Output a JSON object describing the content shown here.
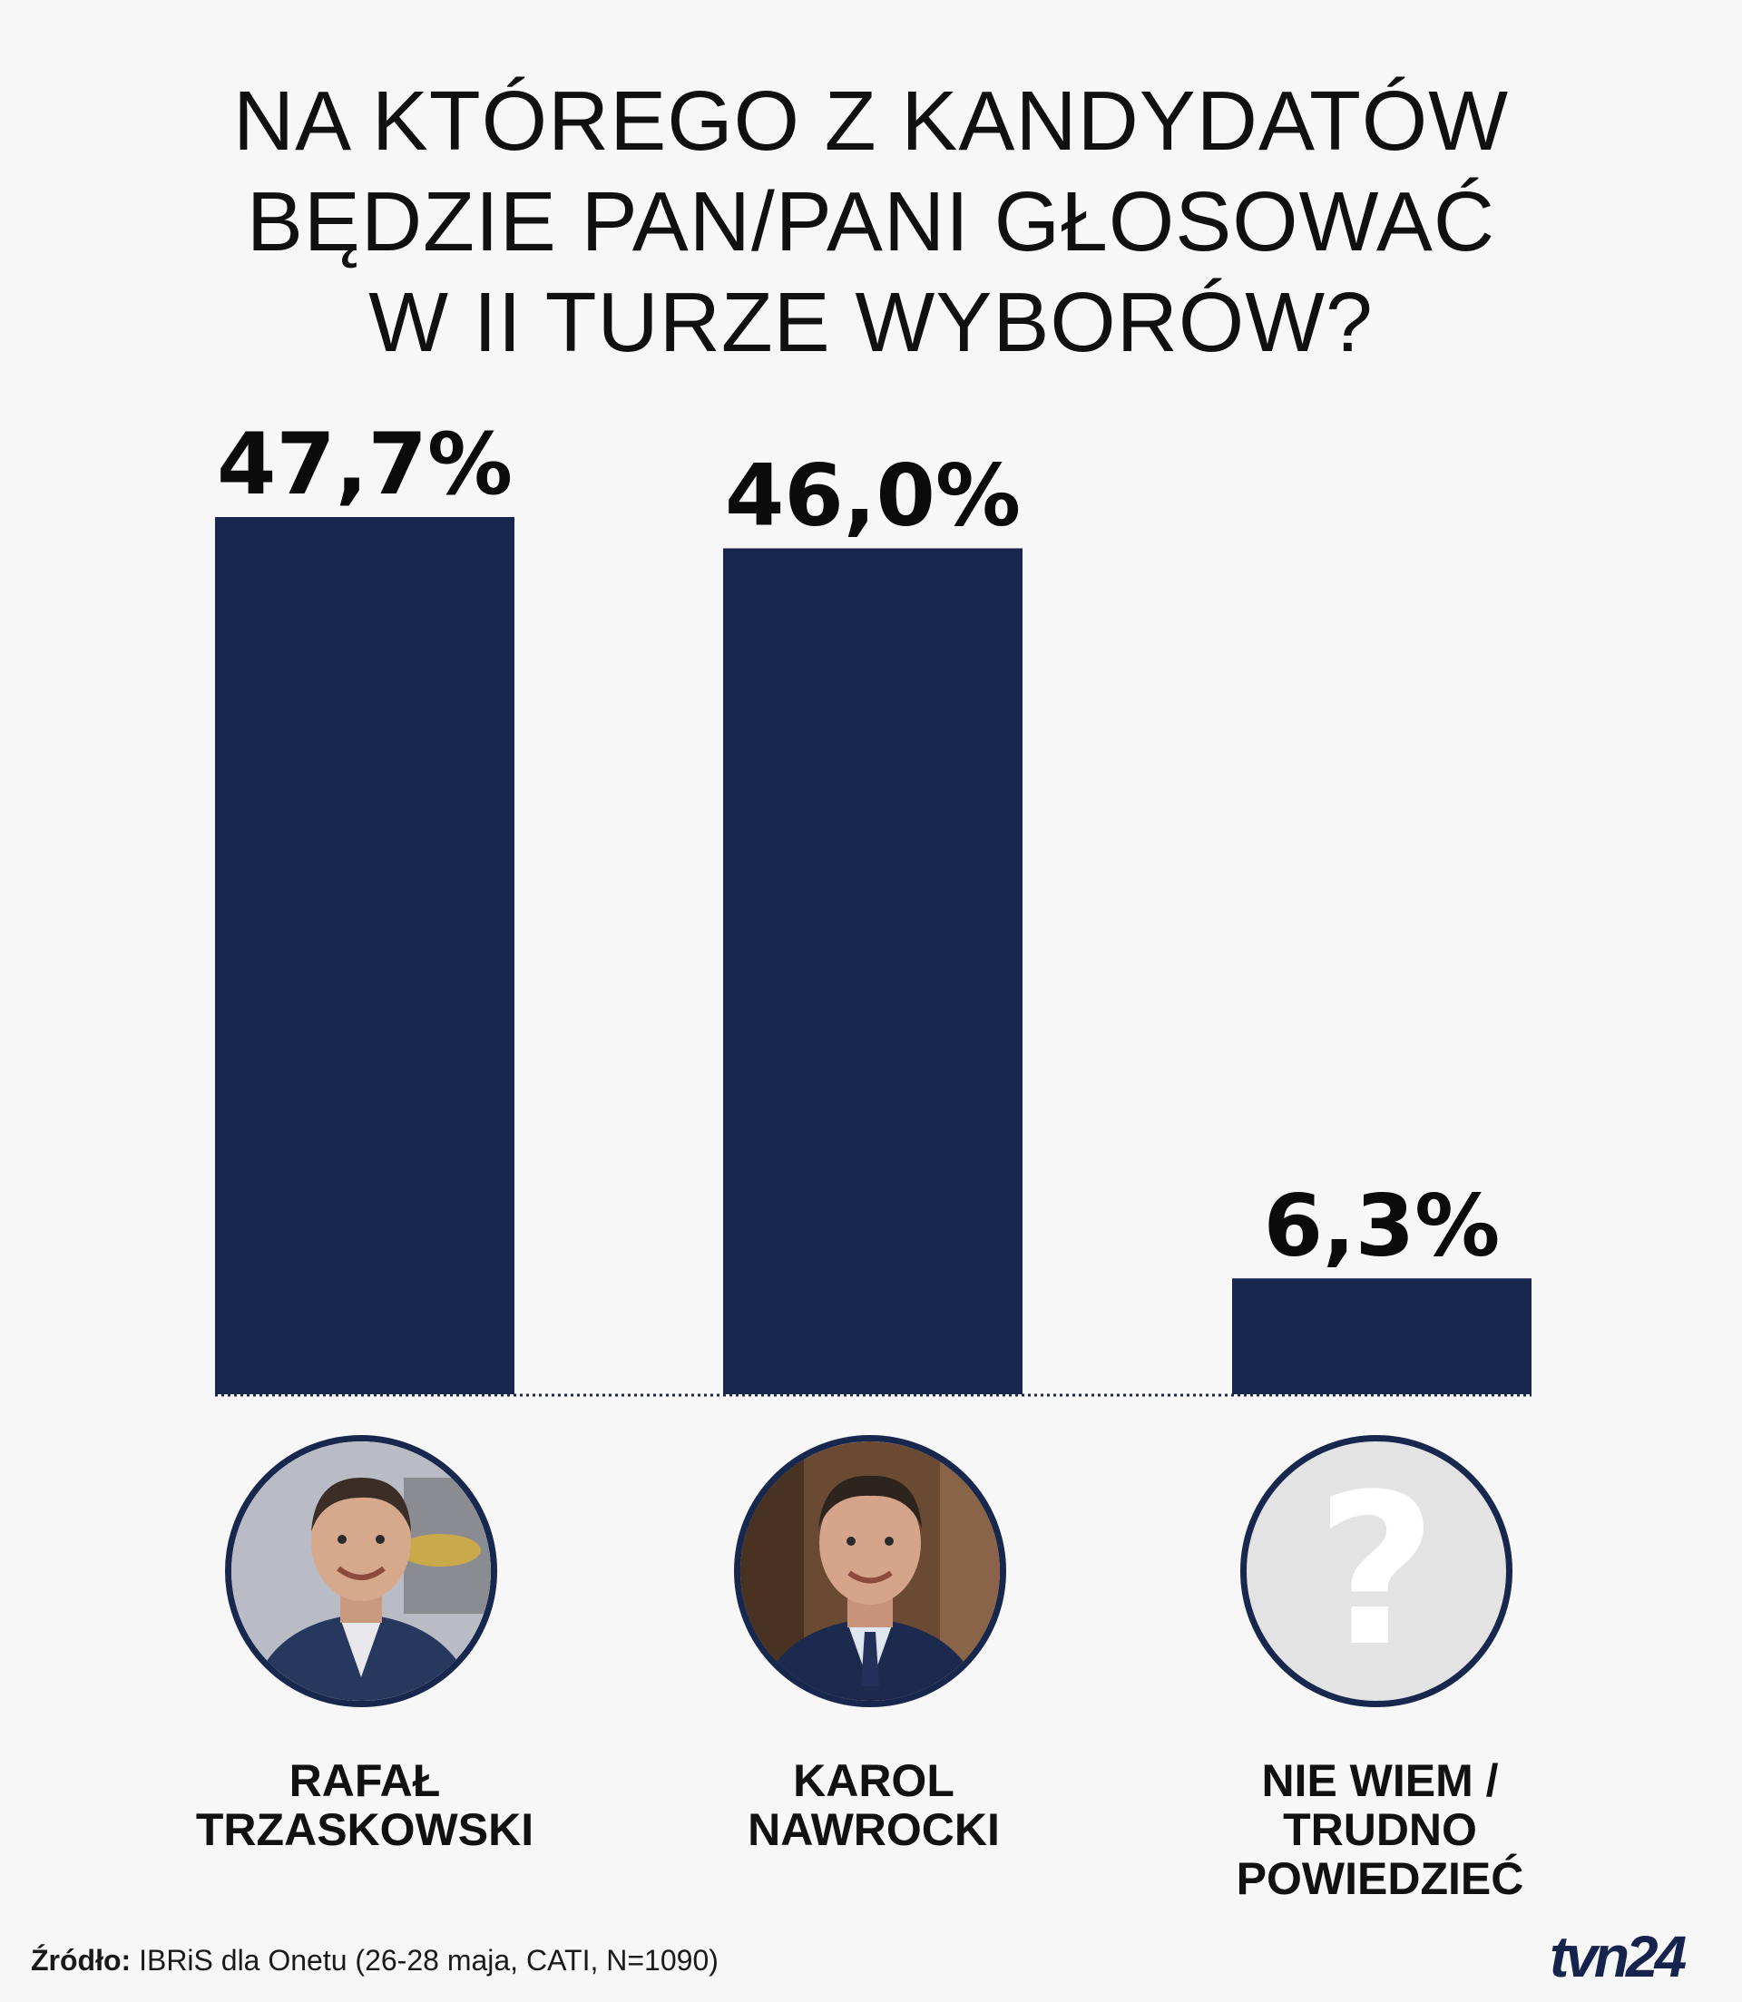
{
  "title": {
    "lines": [
      "NA KTÓREGO Z KANDYDATÓW",
      "BĘDZIE PAN/PANI GŁOSOWAĆ",
      "W II TURZE WYBORÓW?"
    ]
  },
  "chart_data": {
    "type": "bar",
    "title": "NA KTÓREGO Z KANDYDATÓW BĘDZIE PAN/PANI GŁOSOWAĆ W II TURZE WYBORÓW?",
    "categories": [
      "RAFAŁ TRZASKOWSKI",
      "KAROL NAWROCKI",
      "NIE WIEM / TRUDNO POWIEDZIEĆ"
    ],
    "values": [
      47.7,
      46.0,
      6.3
    ],
    "value_labels": [
      "47,7%",
      "46,0%",
      "6,3%"
    ],
    "unit": "%",
    "ylim": [
      0,
      47.7
    ],
    "grid": false,
    "legend": "none",
    "bar_color": "#17274e"
  },
  "candidates": [
    {
      "name_lines": [
        "RAFAŁ",
        "TRZASKOWSKI"
      ],
      "icon": "person-photo-icon"
    },
    {
      "name_lines": [
        "KAROL",
        "NAWROCKI"
      ],
      "icon": "person-photo-icon"
    },
    {
      "name_lines": [
        "NIE WIEM /",
        "TRUDNO",
        "POWIEDZIEĆ"
      ],
      "icon": "question-mark-icon"
    }
  ],
  "source": {
    "label": "Źródło:",
    "text": "IBRiS dla Onetu (26-28 maja, CATI, N=1090)"
  },
  "logo": {
    "text": "tvn24"
  },
  "colors": {
    "background": "#f7f7f7",
    "bar": "#17274e",
    "avatar_border": "#17274e",
    "unknown_avatar_bg": "#e3e3e3"
  }
}
